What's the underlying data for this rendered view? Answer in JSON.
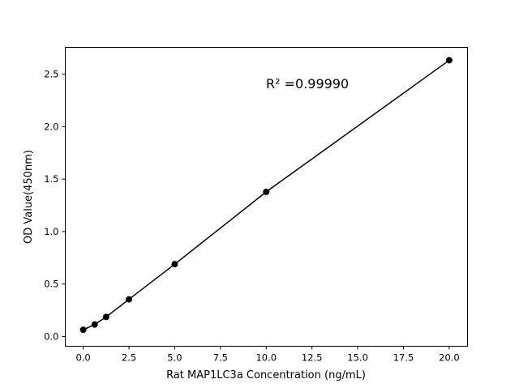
{
  "chart_data": {
    "type": "scatter",
    "title": "",
    "xlabel": "Rat MAP1LC3a Concentration (ng/mL)",
    "ylabel": "OD Value(450nm)",
    "xlim": [
      -0.98,
      21.0
    ],
    "ylim": [
      -0.093,
      2.755
    ],
    "xticks": [
      0.0,
      2.5,
      5.0,
      7.5,
      10.0,
      12.5,
      15.0,
      17.5,
      20.0
    ],
    "xtick_labels": [
      "0.0",
      "2.5",
      "5.0",
      "7.5",
      "10.0",
      "12.5",
      "15.0",
      "17.5",
      "20.0"
    ],
    "yticks": [
      0.0,
      0.5,
      1.0,
      1.5,
      2.0,
      2.5
    ],
    "ytick_labels": [
      "0.0",
      "0.5",
      "1.0",
      "1.5",
      "2.0",
      "2.5"
    ],
    "grid": false,
    "annotation": "R² =0.99990",
    "series": [
      {
        "x": [
          0,
          0.625,
          1.25,
          2.5,
          5,
          10,
          20
        ],
        "y": [
          0.064,
          0.114,
          0.186,
          0.354,
          0.689,
          1.378,
          2.632
        ],
        "color": "#000000",
        "marker": "circle",
        "line": true
      }
    ]
  }
}
